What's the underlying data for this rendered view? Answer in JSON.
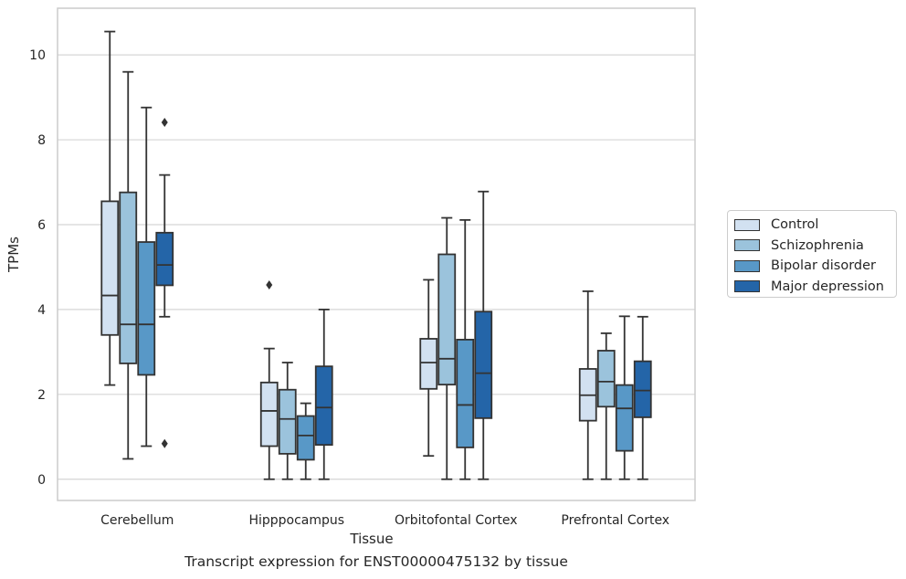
{
  "chart_data": {
    "type": "box",
    "title": "",
    "caption": "Transcript expression for ENST00000475132 by tissue",
    "xlabel": "Tissue",
    "ylabel": "TPMs",
    "ylim": [
      -0.5,
      11.1
    ],
    "yticks": [
      0,
      2,
      4,
      6,
      8,
      10
    ],
    "grid": true,
    "legend_position": "right",
    "categories": [
      "Cerebellum",
      "Hipppocampus",
      "Orbitofontal Cortex",
      "Prefrontal Cortex"
    ],
    "series": [
      {
        "name": "Control",
        "color": "#d2e1f1",
        "boxes": [
          {
            "min": 2.22,
            "q1": 3.4,
            "median": 4.33,
            "q3": 6.55,
            "max": 10.55,
            "outliers": []
          },
          {
            "min": 0.0,
            "q1": 0.78,
            "median": 1.61,
            "q3": 2.28,
            "max": 3.08,
            "outliers": [
              4.58
            ]
          },
          {
            "min": 0.55,
            "q1": 2.13,
            "median": 2.75,
            "q3": 3.31,
            "max": 4.7,
            "outliers": []
          },
          {
            "min": 0.0,
            "q1": 1.38,
            "median": 1.98,
            "q3": 2.6,
            "max": 4.43,
            "outliers": []
          }
        ]
      },
      {
        "name": "Schizophrenia",
        "color": "#9bc3dc",
        "boxes": [
          {
            "min": 0.48,
            "q1": 2.73,
            "median": 3.65,
            "q3": 6.76,
            "max": 9.6,
            "outliers": []
          },
          {
            "min": 0.0,
            "q1": 0.6,
            "median": 1.42,
            "q3": 2.11,
            "max": 2.75,
            "outliers": []
          },
          {
            "min": 0.0,
            "q1": 2.23,
            "median": 2.84,
            "q3": 5.3,
            "max": 6.16,
            "outliers": []
          },
          {
            "min": 0.0,
            "q1": 1.71,
            "median": 2.3,
            "q3": 3.03,
            "max": 3.44,
            "outliers": []
          }
        ]
      },
      {
        "name": "Bipolar disorder",
        "color": "#5898c7",
        "boxes": [
          {
            "min": 0.78,
            "q1": 2.46,
            "median": 3.65,
            "q3": 5.59,
            "max": 8.76,
            "outliers": []
          },
          {
            "min": 0.0,
            "q1": 0.46,
            "median": 1.03,
            "q3": 1.49,
            "max": 1.79,
            "outliers": []
          },
          {
            "min": 0.0,
            "q1": 0.75,
            "median": 1.75,
            "q3": 3.29,
            "max": 6.11,
            "outliers": []
          },
          {
            "min": 0.0,
            "q1": 0.67,
            "median": 1.67,
            "q3": 2.22,
            "max": 3.84,
            "outliers": []
          }
        ]
      },
      {
        "name": "Major depression",
        "color": "#2465a8",
        "boxes": [
          {
            "min": 3.83,
            "q1": 4.57,
            "median": 5.05,
            "q3": 5.81,
            "max": 7.17,
            "outliers": [
              0.84,
              8.41
            ]
          },
          {
            "min": 0.0,
            "q1": 0.81,
            "median": 1.69,
            "q3": 2.66,
            "max": 4.0,
            "outliers": []
          },
          {
            "min": 0.0,
            "q1": 1.44,
            "median": 2.5,
            "q3": 3.95,
            "max": 6.78,
            "outliers": []
          },
          {
            "min": 0.0,
            "q1": 1.46,
            "median": 2.09,
            "q3": 2.78,
            "max": 3.83,
            "outliers": []
          }
        ]
      }
    ]
  }
}
